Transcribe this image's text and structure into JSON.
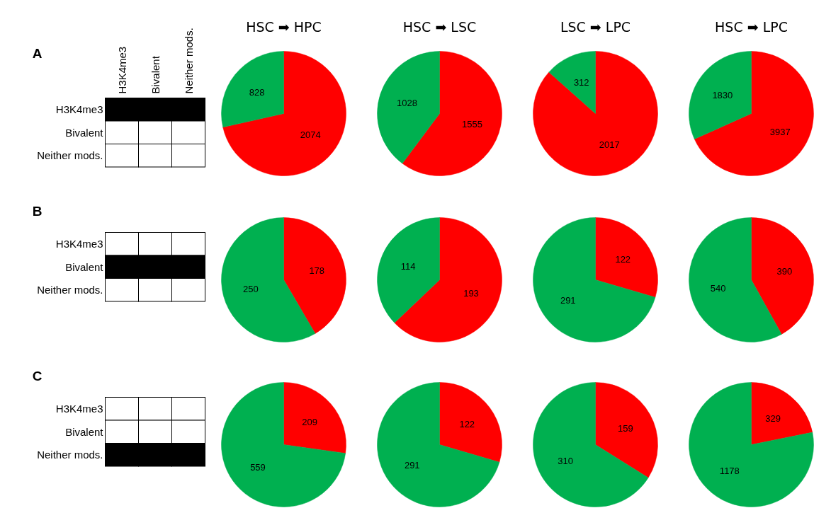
{
  "chart_data": [
    {
      "type": "other",
      "title": "A",
      "categories": [
        "H3K4me3",
        "Bivalent",
        "Neither mods."
      ],
      "y_categories": [
        "H3K4me3",
        "Bivalent",
        "Neither mods."
      ]
    },
    {
      "type": "pie",
      "title": "HSC ➡ HPC",
      "categories": [
        null,
        null
      ],
      "values": [
        2074,
        828
      ],
      "colors": [
        "#ff0000",
        "#00b050"
      ],
      "data_labels": true
    },
    {
      "type": "pie",
      "title": "HSC ➡ LSC",
      "categories": [
        null,
        null
      ],
      "values": [
        1555,
        1028
      ],
      "colors": [
        "#ff0000",
        "#00b050"
      ],
      "data_labels": true
    },
    {
      "type": "pie",
      "title": "LSC ➡ LPC",
      "categories": [
        null,
        null
      ],
      "values": [
        2017,
        312
      ],
      "colors": [
        "#ff0000",
        "#00b050"
      ],
      "data_labels": true
    },
    {
      "type": "pie",
      "title": "HSC ➡ LPC",
      "categories": [
        null,
        null
      ],
      "values": [
        3937,
        1830
      ],
      "colors": [
        "#ff0000",
        "#00b050"
      ],
      "data_labels": true
    },
    {
      "type": "other",
      "title": "B",
      "categories": [
        null,
        null,
        null
      ],
      "y_categories": [
        "H3K4me3",
        "Bivalent",
        "Neither mods."
      ]
    },
    {
      "type": "pie",
      "categories": [
        null,
        null
      ],
      "values": [
        178,
        250
      ],
      "colors": [
        "#ff0000",
        "#00b050"
      ],
      "data_labels": true
    },
    {
      "type": "pie",
      "categories": [
        null,
        null
      ],
      "values": [
        193,
        114
      ],
      "colors": [
        "#ff0000",
        "#00b050"
      ],
      "data_labels": true
    },
    {
      "type": "pie",
      "categories": [
        null,
        null
      ],
      "values": [
        122,
        291
      ],
      "colors": [
        "#ff0000",
        "#00b050"
      ],
      "data_labels": true
    },
    {
      "type": "pie",
      "categories": [
        null,
        null
      ],
      "values": [
        390,
        540
      ],
      "colors": [
        "#ff0000",
        "#00b050"
      ],
      "data_labels": true
    },
    {
      "type": "other",
      "title": "C",
      "categories": [
        null,
        null,
        null
      ],
      "y_categories": [
        "H3K4me3",
        "Bivalent",
        "Neither mods."
      ]
    },
    {
      "type": "pie",
      "categories": [
        null,
        null
      ],
      "values": [
        209,
        559
      ],
      "colors": [
        "#ff0000",
        "#00b050"
      ],
      "data_labels": true
    },
    {
      "type": "pie",
      "categories": [
        null,
        null
      ],
      "values": [
        122,
        291
      ],
      "colors": [
        "#ff0000",
        "#00b050"
      ],
      "data_labels": true
    },
    {
      "type": "pie",
      "categories": [
        null,
        null
      ],
      "values": [
        159,
        310
      ],
      "colors": [
        "#ff0000",
        "#00b050"
      ],
      "data_labels": true
    },
    {
      "type": "pie",
      "categories": [
        null,
        null
      ],
      "values": [
        329,
        1178
      ],
      "colors": [
        "#ff0000",
        "#00b050"
      ],
      "data_labels": true
    }
  ]
}
